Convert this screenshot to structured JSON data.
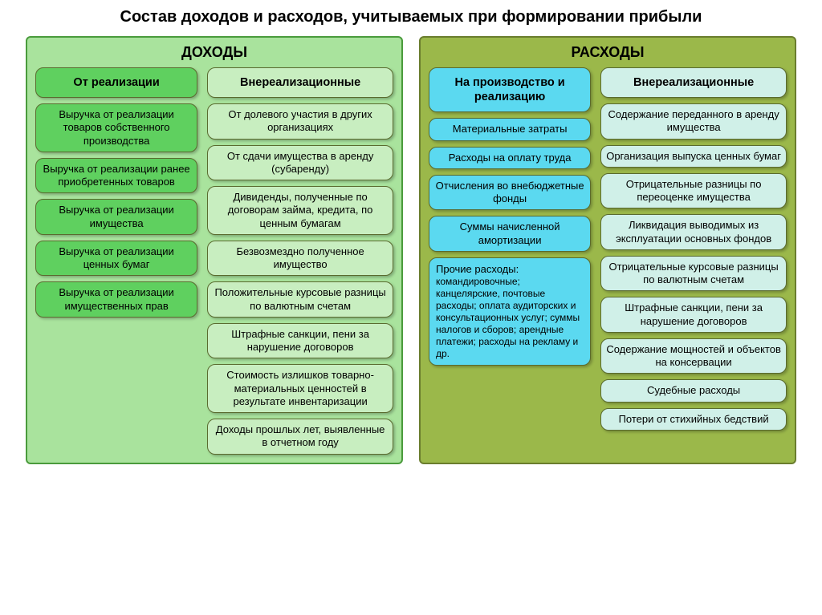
{
  "title": "Состав доходов и расходов, учитываемых при формировании прибыли",
  "colors": {
    "panel_income_bg": "#a9e39d",
    "panel_income_border": "#4a9b3c",
    "panel_expense_bg": "#9bb84a",
    "panel_expense_border": "#6a7d2e",
    "box_green_dark": "#5fd05f",
    "box_green_light": "#c8eec0",
    "box_blue_dark": "#5bd9f0",
    "box_blue_light": "#d0f0e8",
    "box_border": "#5a6b2f"
  },
  "income": {
    "title": "ДОХОДЫ",
    "left": {
      "header": "От реализации",
      "items": [
        "Выручка от реализации товаров собственного производства",
        "Выручка от реализации ранее приобретенных товаров",
        "Выручка от реализации имущества",
        "Выручка от реализации ценных бумаг",
        "Выручка от реализации имущественных прав"
      ]
    },
    "right": {
      "header": "Внереализационные",
      "items": [
        "От долевого участия в других организациях",
        "От сдачи имущества в аренду (субаренду)",
        "Дивиденды, полученные по договорам займа, кредита, по ценным бумагам",
        "Безвозмездно полученное имущество",
        "Положительные курсовые разницы по валютным счетам",
        "Штрафные санкции, пени за нарушение договоров",
        "Стоимость излишков товарно-материальных ценностей в результате инвентаризации",
        "Доходы прошлых лет, выявленные в отчетном году"
      ]
    }
  },
  "expense": {
    "title": "РАСХОДЫ",
    "left": {
      "header": "На производство и реализацию",
      "items": [
        "Материальные затраты",
        "Расходы на оплату труда",
        "Отчисления во внебюджетные фонды",
        "Суммы начисленной амортизации"
      ],
      "other_title": "Прочие расходы:",
      "other_body": "командировочные; канцелярские, почтовые расходы; оплата аудиторских и консультационных услуг; суммы налогов и сборов; арендные платежи; расходы на рекламу и др."
    },
    "right": {
      "header": "Внереализационные",
      "items": [
        "Содержание переданного в аренду имущества",
        "Организация  выпуска ценных бумаг",
        "Отрицательные разницы по переоценке имущества",
        "Ликвидация выводимых из эксплуатации основных фондов",
        "Отрицательные курсовые разницы по валютным счетам",
        "Штрафные санкции, пени за нарушение договоров",
        "Содержание мощностей и объектов на консервации",
        "Судебные расходы",
        "Потери от стихийных бедствий"
      ]
    }
  }
}
